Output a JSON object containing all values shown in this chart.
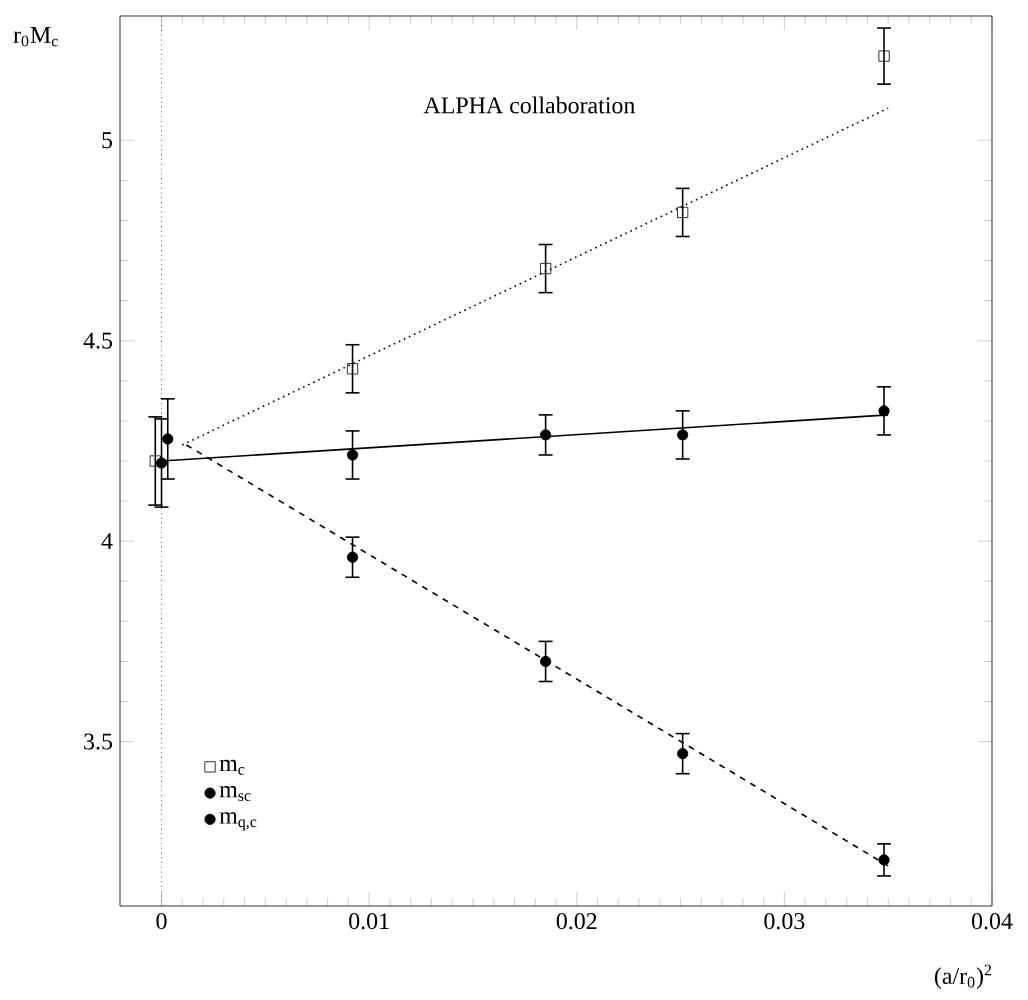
{
  "chart_data": {
    "type": "scatter",
    "xlabel": "(a/r$_{0}$)$^{2}$",
    "ylabel": "r$_{0}$M$_{c}$",
    "annotations": [
      "ALPHA collaboration"
    ],
    "xlim": [
      -0.002,
      0.04
    ],
    "ylim": [
      3.09,
      5.31
    ],
    "xticks": [
      0,
      0.01,
      0.02,
      0.03,
      0.04
    ],
    "yticks": [
      3.5,
      4,
      4.5,
      5
    ],
    "grid": false,
    "legend": "bottom left",
    "ref_lines": [
      {
        "axis": "x",
        "value": 0,
        "color": "#000000",
        "line_style": "dotted"
      }
    ],
    "series": [
      {
        "name": "m$_{c}$",
        "marker": "square",
        "color": "#000000",
        "x": [
          -0.0003,
          0.0092,
          0.0185,
          0.0251,
          0.0348
        ],
        "values": [
          4.2,
          4.43,
          4.68,
          4.82,
          5.21
        ],
        "errors": [
          0.11,
          0.06,
          0.06,
          0.06,
          0.07
        ]
      },
      {
        "name": "m$_{sc}$",
        "marker": "circle",
        "color": "#000000",
        "x": [
          0,
          0.0092,
          0.0185,
          0.0251,
          0.0348
        ],
        "values": [
          4.195,
          4.215,
          4.265,
          4.265,
          4.325
        ],
        "errors": [
          0.11,
          0.06,
          0.05,
          0.06,
          0.06
        ]
      },
      {
        "name": "m$_{q,c}$",
        "marker": "circle",
        "color": "#000000",
        "x": [
          0.0003,
          0.0092,
          0.0185,
          0.0251,
          0.0348
        ],
        "values": [
          4.255,
          3.96,
          3.7,
          3.47,
          3.205
        ],
        "errors": [
          0.1,
          0.05,
          0.05,
          0.05,
          0.04
        ]
      },
      {
        "type": "line",
        "marker": "none",
        "line_style": "dotted",
        "color": "#000000",
        "x": [
          0.001,
          0.035
        ],
        "values": [
          4.24,
          5.08
        ]
      },
      {
        "type": "line",
        "marker": "none",
        "line_style": "solid",
        "color": "#000000",
        "x": [
          0,
          0.035
        ],
        "values": [
          4.2,
          4.315
        ]
      },
      {
        "type": "line",
        "marker": "none",
        "line_style": "dashed",
        "color": "#000000",
        "x": [
          0.0012,
          0.035
        ],
        "values": [
          4.24,
          3.19
        ]
      }
    ]
  }
}
